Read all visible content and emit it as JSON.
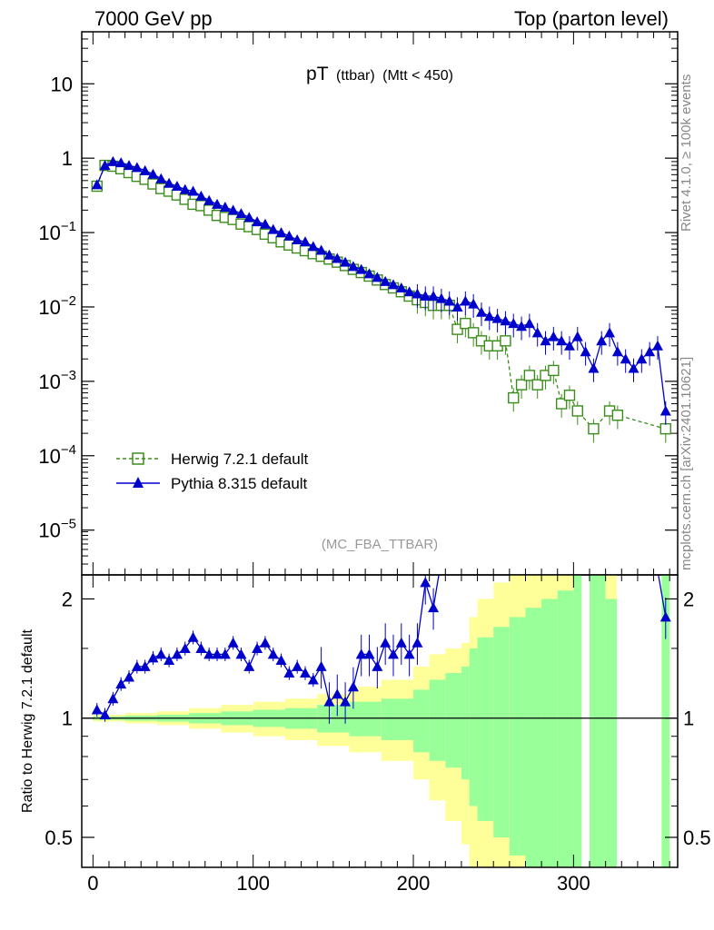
{
  "header": {
    "left": "7000 GeV pp",
    "right": "Top (parton level)"
  },
  "side_labels": {
    "rivet": "Rivet 4.1.0, ≥ 100k events",
    "mcplots": "mcplots.cern.ch [arXiv:2401.10621]"
  },
  "chart_data": [
    {
      "panel": "main",
      "type": "line",
      "title_main": "pT",
      "title_sub1": "(ttbar)",
      "title_sub2": "(Mtt < 450)",
      "watermark": "(MC_FBA_TTBAR)",
      "yscale": "log",
      "xlim": [
        -7,
        365
      ],
      "ylim": [
        2.5e-06,
        50
      ],
      "yticks": [
        1e-05,
        0.0001,
        0.001,
        0.01,
        0.1,
        1,
        10
      ],
      "ytick_labels": [
        {
          "base": "10",
          "exp": "−5"
        },
        {
          "base": "10",
          "exp": "−4"
        },
        {
          "base": "10",
          "exp": "−3"
        },
        {
          "base": "10",
          "exp": "−2"
        },
        {
          "base": "10",
          "exp": "−1"
        },
        {
          "base": "1",
          "exp": ""
        },
        {
          "base": "10",
          "exp": ""
        }
      ],
      "series": [
        {
          "name": "Herwig 7.2.1 default",
          "color": "#3a8d1a",
          "marker": "open-square",
          "linestyle": "dashed",
          "x": [
            2.5,
            7.5,
            12.5,
            17.5,
            22.5,
            27.5,
            32.5,
            37.5,
            42.5,
            47.5,
            52.5,
            57.5,
            62.5,
            67.5,
            72.5,
            77.5,
            82.5,
            87.5,
            92.5,
            97.5,
            102.5,
            107.5,
            112.5,
            117.5,
            122.5,
            127.5,
            132.5,
            137.5,
            142.5,
            147.5,
            152.5,
            157.5,
            162.5,
            167.5,
            172.5,
            177.5,
            182.5,
            187.5,
            192.5,
            197.5,
            202.5,
            207.5,
            212.5,
            217.5,
            222.5,
            227.5,
            232.5,
            237.5,
            242.5,
            247.5,
            252.5,
            257.5,
            262.5,
            267.5,
            272.5,
            277.5,
            282.5,
            287.5,
            292.5,
            297.5,
            302.5,
            312.5,
            322.5,
            327.5,
            357.5
          ],
          "y": [
            0.42,
            0.8,
            0.78,
            0.72,
            0.64,
            0.57,
            0.52,
            0.45,
            0.39,
            0.36,
            0.32,
            0.28,
            0.24,
            0.23,
            0.2,
            0.17,
            0.16,
            0.15,
            0.13,
            0.12,
            0.11,
            0.095,
            0.085,
            0.075,
            0.068,
            0.062,
            0.057,
            0.052,
            0.048,
            0.044,
            0.04,
            0.036,
            0.032,
            0.029,
            0.026,
            0.023,
            0.02,
            0.018,
            0.016,
            0.014,
            0.0125,
            0.0115,
            0.0105,
            0.0105,
            0.0105,
            0.005,
            0.006,
            0.0045,
            0.0035,
            0.003,
            0.003,
            0.0035,
            0.0006,
            0.0009,
            0.0012,
            0.0009,
            0.0012,
            0.0014,
            0.0005,
            0.00065,
            0.0004,
            0.00023,
            0.0004,
            0.00035,
            0.00023
          ]
        },
        {
          "name": "Pythia 8.315 default",
          "color": "#0000cc",
          "marker": "filled-triangle",
          "linestyle": "solid",
          "x": [
            2.5,
            7.5,
            12.5,
            17.5,
            22.5,
            27.5,
            32.5,
            37.5,
            42.5,
            47.5,
            52.5,
            57.5,
            62.5,
            67.5,
            72.5,
            77.5,
            82.5,
            87.5,
            92.5,
            97.5,
            102.5,
            107.5,
            112.5,
            117.5,
            122.5,
            127.5,
            132.5,
            137.5,
            142.5,
            147.5,
            152.5,
            157.5,
            162.5,
            167.5,
            172.5,
            177.5,
            182.5,
            187.5,
            192.5,
            197.5,
            202.5,
            207.5,
            212.5,
            217.5,
            222.5,
            227.5,
            232.5,
            237.5,
            242.5,
            247.5,
            252.5,
            257.5,
            262.5,
            267.5,
            272.5,
            277.5,
            282.5,
            287.5,
            292.5,
            297.5,
            302.5,
            307.5,
            312.5,
            317.5,
            322.5,
            327.5,
            332.5,
            337.5,
            342.5,
            347.5,
            352.5,
            357.5
          ],
          "y": [
            0.44,
            0.8,
            0.9,
            0.87,
            0.8,
            0.75,
            0.68,
            0.61,
            0.53,
            0.46,
            0.42,
            0.38,
            0.36,
            0.31,
            0.27,
            0.24,
            0.22,
            0.2,
            0.18,
            0.16,
            0.14,
            0.13,
            0.11,
            0.1,
            0.09,
            0.08,
            0.075,
            0.065,
            0.058,
            0.05,
            0.045,
            0.04,
            0.035,
            0.032,
            0.028,
            0.025,
            0.022,
            0.02,
            0.018,
            0.016,
            0.015,
            0.014,
            0.014,
            0.013,
            0.012,
            0.01,
            0.012,
            0.011,
            0.0085,
            0.0075,
            0.007,
            0.0065,
            0.006,
            0.0055,
            0.006,
            0.0045,
            0.0035,
            0.004,
            0.0035,
            0.003,
            0.004,
            0.0025,
            0.0015,
            0.0035,
            0.0045,
            0.0025,
            0.002,
            0.0015,
            0.002,
            0.0025,
            0.003,
            0.0004
          ]
        }
      ]
    },
    {
      "panel": "ratio",
      "type": "line",
      "ylabel": "Ratio to Herwig 7.2.1 default",
      "xlabel": "",
      "yscale": "log",
      "xlim": [
        -7,
        365
      ],
      "ylim": [
        0.42,
        2.3
      ],
      "yticks": [
        0.5,
        1,
        2
      ],
      "ytick_labels": [
        "0.5",
        "1",
        "2"
      ],
      "xticks": [
        0,
        100,
        200,
        300
      ],
      "xtick_labels": [
        "0",
        "100",
        "200",
        "300"
      ],
      "reference_line": 1,
      "uncertainty_band": {
        "colors": {
          "inner": "#99ff99",
          "outer": "#ffff99"
        },
        "x_edges": [
          0,
          20,
          40,
          60,
          80,
          100,
          120,
          140,
          160,
          180,
          200,
          210,
          220,
          230,
          235,
          240,
          250,
          260,
          270,
          280,
          290,
          300,
          305,
          310,
          320,
          327,
          355,
          360
        ],
        "inner_up": [
          1.01,
          1.015,
          1.02,
          1.03,
          1.04,
          1.05,
          1.06,
          1.08,
          1.1,
          1.12,
          1.18,
          1.25,
          1.3,
          1.35,
          1.5,
          1.6,
          1.7,
          1.8,
          1.9,
          2.0,
          2.1,
          2.3,
          null,
          2.3,
          2.0,
          null,
          2.3
        ],
        "inner_dn": [
          0.99,
          0.985,
          0.98,
          0.97,
          0.96,
          0.95,
          0.94,
          0.92,
          0.9,
          0.88,
          0.82,
          0.78,
          0.75,
          0.7,
          0.6,
          0.55,
          0.5,
          0.45,
          0.42,
          0.42,
          0.42,
          0.42,
          null,
          0.42,
          0.42,
          null,
          0.42
        ],
        "outer_up": [
          1.02,
          1.03,
          1.04,
          1.06,
          1.08,
          1.1,
          1.12,
          1.15,
          1.2,
          1.25,
          1.35,
          1.45,
          1.5,
          1.55,
          1.8,
          2.0,
          2.2,
          2.3,
          2.3,
          2.3,
          2.3,
          2.3,
          null,
          2.3,
          2.3,
          null,
          2.3
        ],
        "outer_dn": [
          0.98,
          0.97,
          0.96,
          0.94,
          0.92,
          0.9,
          0.88,
          0.85,
          0.82,
          0.78,
          0.7,
          0.62,
          0.55,
          0.48,
          0.42,
          0.42,
          0.42,
          0.42,
          0.42,
          0.42,
          0.42,
          0.42,
          null,
          0.42,
          0.42,
          null,
          0.42
        ]
      },
      "series": [
        {
          "name": "Pythia 8.315 default",
          "color": "#0000cc",
          "x": [
            2.5,
            7.5,
            12.5,
            17.5,
            22.5,
            27.5,
            32.5,
            37.5,
            42.5,
            47.5,
            52.5,
            57.5,
            62.5,
            67.5,
            72.5,
            77.5,
            82.5,
            87.5,
            92.5,
            97.5,
            102.5,
            107.5,
            112.5,
            117.5,
            122.5,
            127.5,
            132.5,
            137.5,
            142.5,
            147.5,
            152.5,
            157.5,
            162.5,
            167.5,
            172.5,
            177.5,
            182.5,
            187.5,
            192.5,
            197.5,
            202.5,
            207.5,
            212.5,
            357.5
          ],
          "y": [
            1.05,
            1.02,
            1.12,
            1.22,
            1.27,
            1.35,
            1.35,
            1.42,
            1.45,
            1.4,
            1.45,
            1.5,
            1.6,
            1.5,
            1.45,
            1.45,
            1.45,
            1.55,
            1.45,
            1.35,
            1.5,
            1.55,
            1.45,
            1.4,
            1.3,
            1.35,
            1.3,
            1.25,
            1.35,
            1.1,
            1.15,
            1.1,
            1.2,
            1.45,
            1.45,
            1.35,
            1.55,
            1.45,
            1.55,
            1.45,
            1.55,
            2.2,
            1.9,
            1.8
          ]
        }
      ]
    }
  ]
}
